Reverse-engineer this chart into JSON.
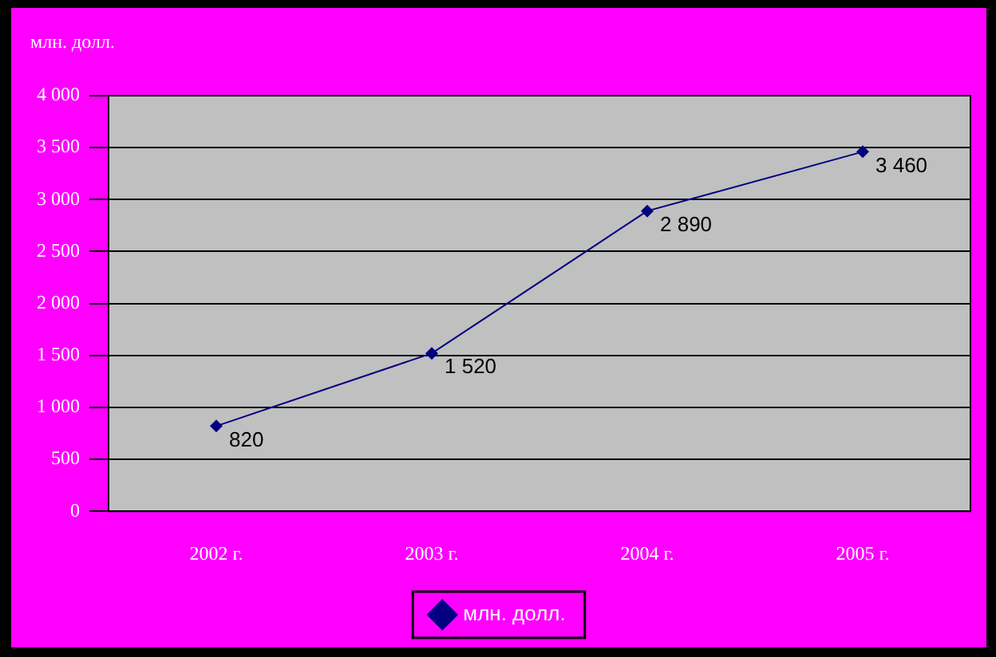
{
  "chart_data": {
    "type": "line",
    "ylabel": "млн. долл.",
    "categories": [
      "2002 г.",
      "2003 г.",
      "2004 г.",
      "2005 г."
    ],
    "series": [
      {
        "name": "млн. долл.",
        "color": "#000080",
        "values": [
          820,
          1520,
          2890,
          3460
        ],
        "value_labels": [
          "820",
          "1 520",
          "2 890",
          "3 460"
        ]
      }
    ],
    "ylim": [
      0,
      4000
    ],
    "yticks": [
      {
        "value": 0,
        "label": "0"
      },
      {
        "value": 500,
        "label": "500"
      },
      {
        "value": 1000,
        "label": "1 000"
      },
      {
        "value": 1500,
        "label": "1 500"
      },
      {
        "value": 2000,
        "label": "2 000"
      },
      {
        "value": 2500,
        "label": "2 500"
      },
      {
        "value": 3000,
        "label": "3 000"
      },
      {
        "value": 3500,
        "label": "3 500"
      },
      {
        "value": 4000,
        "label": "4 000"
      }
    ],
    "grid": "y",
    "legend": "bottom",
    "marker": "diamond",
    "line_style": "solid"
  }
}
